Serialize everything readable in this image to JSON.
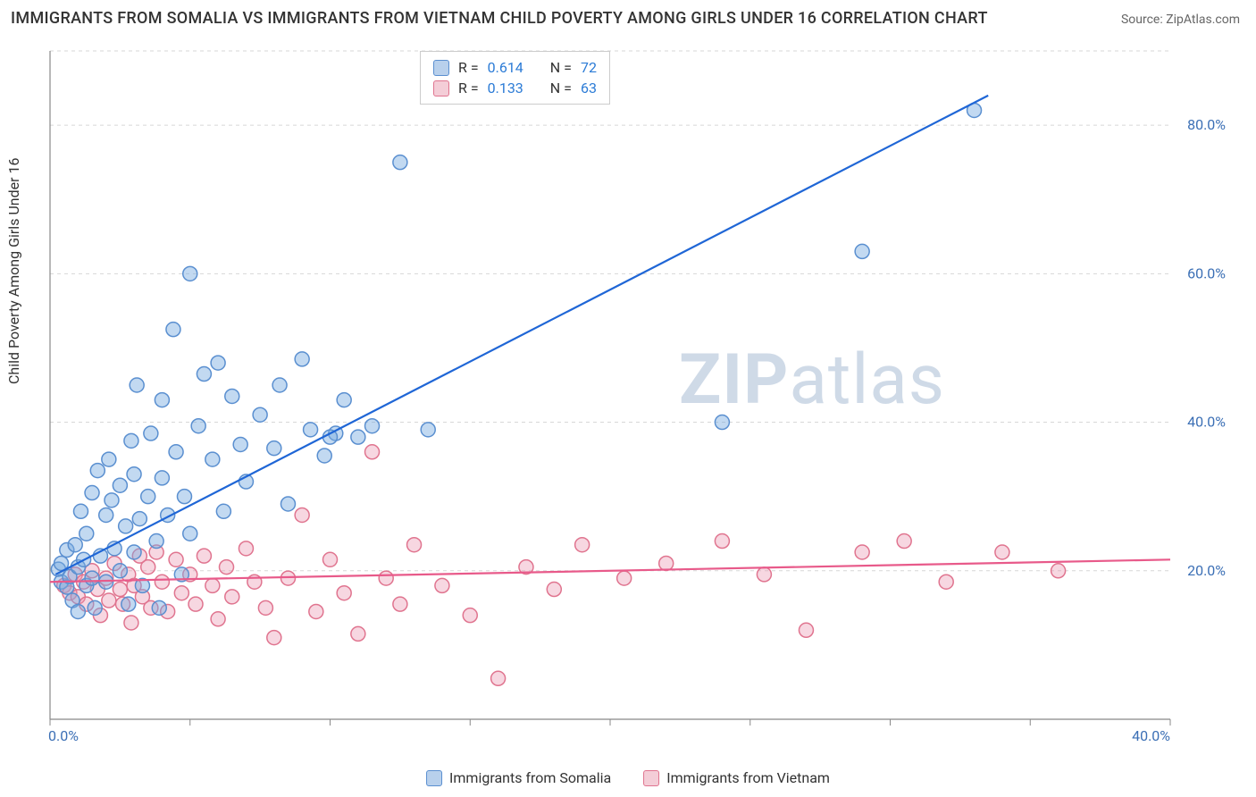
{
  "title": "IMMIGRANTS FROM SOMALIA VS IMMIGRANTS FROM VIETNAM CHILD POVERTY AMONG GIRLS UNDER 16 CORRELATION CHART",
  "source_label": "Source: ZipAtlas.com",
  "y_axis_label": "Child Poverty Among Girls Under 16",
  "watermark_a": "ZIP",
  "watermark_b": "atlas",
  "chart": {
    "type": "scatter",
    "background_color": "#ffffff",
    "grid_color": "#d7d7d7",
    "axis_color": "#888888",
    "tick_label_color": "#3b6fb5",
    "x_range": [
      0,
      40
    ],
    "y_range": [
      0,
      90
    ],
    "x_ticks": [
      0,
      5,
      10,
      15,
      20,
      25,
      30,
      35,
      40
    ],
    "x_tick_labels_visible": {
      "0": "0.0%",
      "40": "40.0%"
    },
    "y_grid_lines": [
      20,
      40,
      60,
      80
    ],
    "y_tick_labels": {
      "20": "20.0%",
      "40": "40.0%",
      "60": "60.0%",
      "80": "80.0%"
    },
    "marker_radius": 8,
    "marker_stroke_width": 1.5,
    "trend_line_width": 2.2,
    "series": [
      {
        "id": "somalia",
        "label": "Immigrants from Somalia",
        "swatch_fill": "#b8d0ec",
        "swatch_stroke": "#5a8fd0",
        "marker_fill": "rgba(120,170,225,0.45)",
        "marker_stroke": "#5a8fd0",
        "trend_color": "#1f66d6",
        "trend_start": [
          0.2,
          19.5
        ],
        "trend_end": [
          33.5,
          84.0
        ],
        "R": "0.614",
        "N": "72",
        "points": [
          [
            0.3,
            20.2
          ],
          [
            0.4,
            18.5
          ],
          [
            0.4,
            21.0
          ],
          [
            0.6,
            17.8
          ],
          [
            0.6,
            22.8
          ],
          [
            0.7,
            19.2
          ],
          [
            0.8,
            16.0
          ],
          [
            0.9,
            23.5
          ],
          [
            1.0,
            20.5
          ],
          [
            1.0,
            14.5
          ],
          [
            1.1,
            28.0
          ],
          [
            1.2,
            21.5
          ],
          [
            1.3,
            18.0
          ],
          [
            1.3,
            25.0
          ],
          [
            1.5,
            30.5
          ],
          [
            1.5,
            19.0
          ],
          [
            1.6,
            15.0
          ],
          [
            1.7,
            33.5
          ],
          [
            1.8,
            22.0
          ],
          [
            2.0,
            27.5
          ],
          [
            2.0,
            18.5
          ],
          [
            2.1,
            35.0
          ],
          [
            2.2,
            29.5
          ],
          [
            2.3,
            23.0
          ],
          [
            2.5,
            31.5
          ],
          [
            2.5,
            20.0
          ],
          [
            2.7,
            26.0
          ],
          [
            2.8,
            15.5
          ],
          [
            2.9,
            37.5
          ],
          [
            3.0,
            33.0
          ],
          [
            3.0,
            22.5
          ],
          [
            3.1,
            45.0
          ],
          [
            3.2,
            27.0
          ],
          [
            3.3,
            18.0
          ],
          [
            3.5,
            30.0
          ],
          [
            3.6,
            38.5
          ],
          [
            3.8,
            24.0
          ],
          [
            3.9,
            15.0
          ],
          [
            4.0,
            43.0
          ],
          [
            4.0,
            32.5
          ],
          [
            4.2,
            27.5
          ],
          [
            4.4,
            52.5
          ],
          [
            4.5,
            36.0
          ],
          [
            4.7,
            19.5
          ],
          [
            4.8,
            30.0
          ],
          [
            5.0,
            60.0
          ],
          [
            5.0,
            25.0
          ],
          [
            5.3,
            39.5
          ],
          [
            5.5,
            46.5
          ],
          [
            5.8,
            35.0
          ],
          [
            6.0,
            48.0
          ],
          [
            6.2,
            28.0
          ],
          [
            6.5,
            43.5
          ],
          [
            6.8,
            37.0
          ],
          [
            7.0,
            32.0
          ],
          [
            7.5,
            41.0
          ],
          [
            8.0,
            36.5
          ],
          [
            8.2,
            45.0
          ],
          [
            8.5,
            29.0
          ],
          [
            9.0,
            48.5
          ],
          [
            9.3,
            39.0
          ],
          [
            9.8,
            35.5
          ],
          [
            10.2,
            38.5
          ],
          [
            10.5,
            43.0
          ],
          [
            11.0,
            38.0
          ],
          [
            11.5,
            39.5
          ],
          [
            12.5,
            75.0
          ],
          [
            13.5,
            39.0
          ],
          [
            24.0,
            40.0
          ],
          [
            29.0,
            63.0
          ],
          [
            33.0,
            82.0
          ],
          [
            10.0,
            38.0
          ]
        ]
      },
      {
        "id": "vietnam",
        "label": "Immigrants from Vietnam",
        "swatch_fill": "#f4cdd7",
        "swatch_stroke": "#e0748f",
        "marker_fill": "rgba(235,150,175,0.38)",
        "marker_stroke": "#e0748f",
        "trend_color": "#e85a8a",
        "trend_start": [
          0.0,
          18.5
        ],
        "trend_end": [
          40.0,
          21.5
        ],
        "R": "0.133",
        "N": "63",
        "points": [
          [
            0.5,
            18.0
          ],
          [
            0.7,
            17.0
          ],
          [
            0.9,
            19.5
          ],
          [
            1.0,
            16.5
          ],
          [
            1.2,
            18.5
          ],
          [
            1.3,
            15.5
          ],
          [
            1.5,
            20.0
          ],
          [
            1.7,
            17.5
          ],
          [
            1.8,
            14.0
          ],
          [
            2.0,
            19.0
          ],
          [
            2.1,
            16.0
          ],
          [
            2.3,
            21.0
          ],
          [
            2.5,
            17.5
          ],
          [
            2.6,
            15.5
          ],
          [
            2.8,
            19.5
          ],
          [
            2.9,
            13.0
          ],
          [
            3.0,
            18.0
          ],
          [
            3.2,
            22.0
          ],
          [
            3.3,
            16.5
          ],
          [
            3.5,
            20.5
          ],
          [
            3.6,
            15.0
          ],
          [
            3.8,
            22.5
          ],
          [
            4.0,
            18.5
          ],
          [
            4.2,
            14.5
          ],
          [
            4.5,
            21.5
          ],
          [
            4.7,
            17.0
          ],
          [
            5.0,
            19.5
          ],
          [
            5.2,
            15.5
          ],
          [
            5.5,
            22.0
          ],
          [
            5.8,
            18.0
          ],
          [
            6.0,
            13.5
          ],
          [
            6.3,
            20.5
          ],
          [
            6.5,
            16.5
          ],
          [
            7.0,
            23.0
          ],
          [
            7.3,
            18.5
          ],
          [
            7.7,
            15.0
          ],
          [
            8.0,
            11.0
          ],
          [
            8.5,
            19.0
          ],
          [
            9.0,
            27.5
          ],
          [
            9.5,
            14.5
          ],
          [
            10.0,
            21.5
          ],
          [
            10.5,
            17.0
          ],
          [
            11.0,
            11.5
          ],
          [
            11.5,
            36.0
          ],
          [
            12.0,
            19.0
          ],
          [
            12.5,
            15.5
          ],
          [
            13.0,
            23.5
          ],
          [
            14.0,
            18.0
          ],
          [
            15.0,
            14.0
          ],
          [
            16.0,
            5.5
          ],
          [
            17.0,
            20.5
          ],
          [
            18.0,
            17.5
          ],
          [
            19.0,
            23.5
          ],
          [
            20.5,
            19.0
          ],
          [
            22.0,
            21.0
          ],
          [
            24.0,
            24.0
          ],
          [
            25.5,
            19.5
          ],
          [
            27.0,
            12.0
          ],
          [
            29.0,
            22.5
          ],
          [
            30.5,
            24.0
          ],
          [
            32.0,
            18.5
          ],
          [
            34.0,
            22.5
          ],
          [
            36.0,
            20.0
          ]
        ]
      }
    ]
  },
  "legend_labels": {
    "r_prefix": "R = ",
    "n_prefix": "N = "
  }
}
